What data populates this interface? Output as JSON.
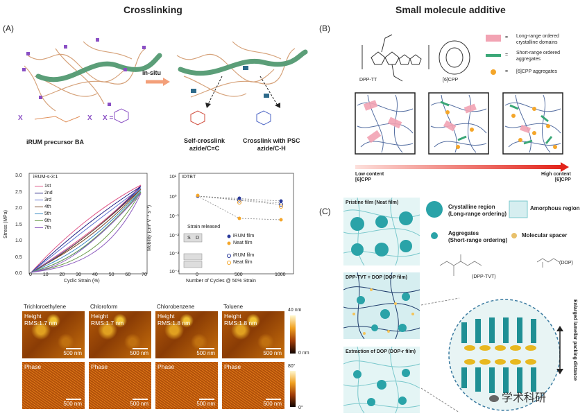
{
  "titles": {
    "left": "Crosslinking",
    "right": "Small molecule additive"
  },
  "panels": {
    "a": "(A)",
    "b": "(B)",
    "c": "(C)"
  },
  "panelA": {
    "in_situ": "in-situ",
    "precursor_label": "iRUM precursor BA",
    "x_eq": "X =",
    "x1": "X",
    "x2": "X",
    "self_cross": "Self-crosslink\nazide/C=C",
    "psc_cross": "Crosslink with PSC\nazide/C-H",
    "stress_chart": {
      "legend_title": "iRUM-s-3:1",
      "ylabel": "Stress (MPa)",
      "xlabel": "Cyclic Strain (%)",
      "series": [
        "1st",
        "2nd",
        "3rd",
        "4th",
        "5th",
        "6th",
        "7th"
      ],
      "xticks": [
        "0",
        "10",
        "20",
        "30",
        "40",
        "50",
        "60",
        "70"
      ],
      "yticks": [
        "0.0",
        "0.5",
        "1.0",
        "1.5",
        "2.0",
        "2.5",
        "3.0"
      ]
    },
    "mob_chart": {
      "title": "IDTBT",
      "ylabel": "Mobility (cm² V⁻¹ s⁻¹)",
      "xlabel": "Number of Cycles @ 50% Strain",
      "xticks": [
        "0",
        "500",
        "1000"
      ],
      "yticks": [
        "10⁰",
        "10⁻¹",
        "10⁻²",
        "10⁻³",
        "10⁻⁴",
        "10¹"
      ],
      "strain_released": "Strain released",
      "s": "S",
      "d": "D",
      "leg1": "iRUM film",
      "leg2": "Neat film",
      "leg3": "iRUM film",
      "leg4": "Neat film"
    },
    "afm": {
      "solvents": [
        "Trichloroethylene",
        "Chloroform",
        "Chlorobenzene",
        "Toluene"
      ],
      "height_label": "Height",
      "rms": [
        "RMS:1.7 nm",
        "RMS:1.7 nm",
        "RMS:1.8 nm",
        "RMS:1.8 nm"
      ],
      "phase_label": "Phase",
      "scale": "500 nm",
      "cb1_top": "40 nm",
      "cb1_bot": "0 nm",
      "cb2_top": "80°",
      "cb2_bot": "0°"
    }
  },
  "panelB": {
    "dpp_tt": "DPP-TT",
    "cpp": "[6]CPP",
    "leg1": "Long-range ordered\ncrystalline domains",
    "leg2": "Short-range ordered\naggregates",
    "leg3": "[6]CPP aggregates",
    "eq": "=",
    "low": "Low content\n[6]CPP",
    "high": "High content\n[6]CPP",
    "colors": {
      "pink": "#f2a3b3",
      "green": "#3aa777",
      "orange": "#f4a62a",
      "arrow": "#e2231a"
    }
  },
  "panelC": {
    "pristine": "Pristine film (Neat film)",
    "dpp_dop": "DPP-TVT + DOP (DOP film)",
    "extraction": "Extraction of DOP (DOP-r film)",
    "crystalline": "Crystalline region\n(Long-range ordering)",
    "amorphous": "Amorphous region",
    "aggregates": "Aggregates\n(Short-range ordering)",
    "spacer": "Molecular spacer",
    "dpp_tvt": "(DPP-TVT)",
    "dop": "(DOP)",
    "enlarged": "Enlarged lamellar packing distance",
    "watermark": "学术科研"
  }
}
